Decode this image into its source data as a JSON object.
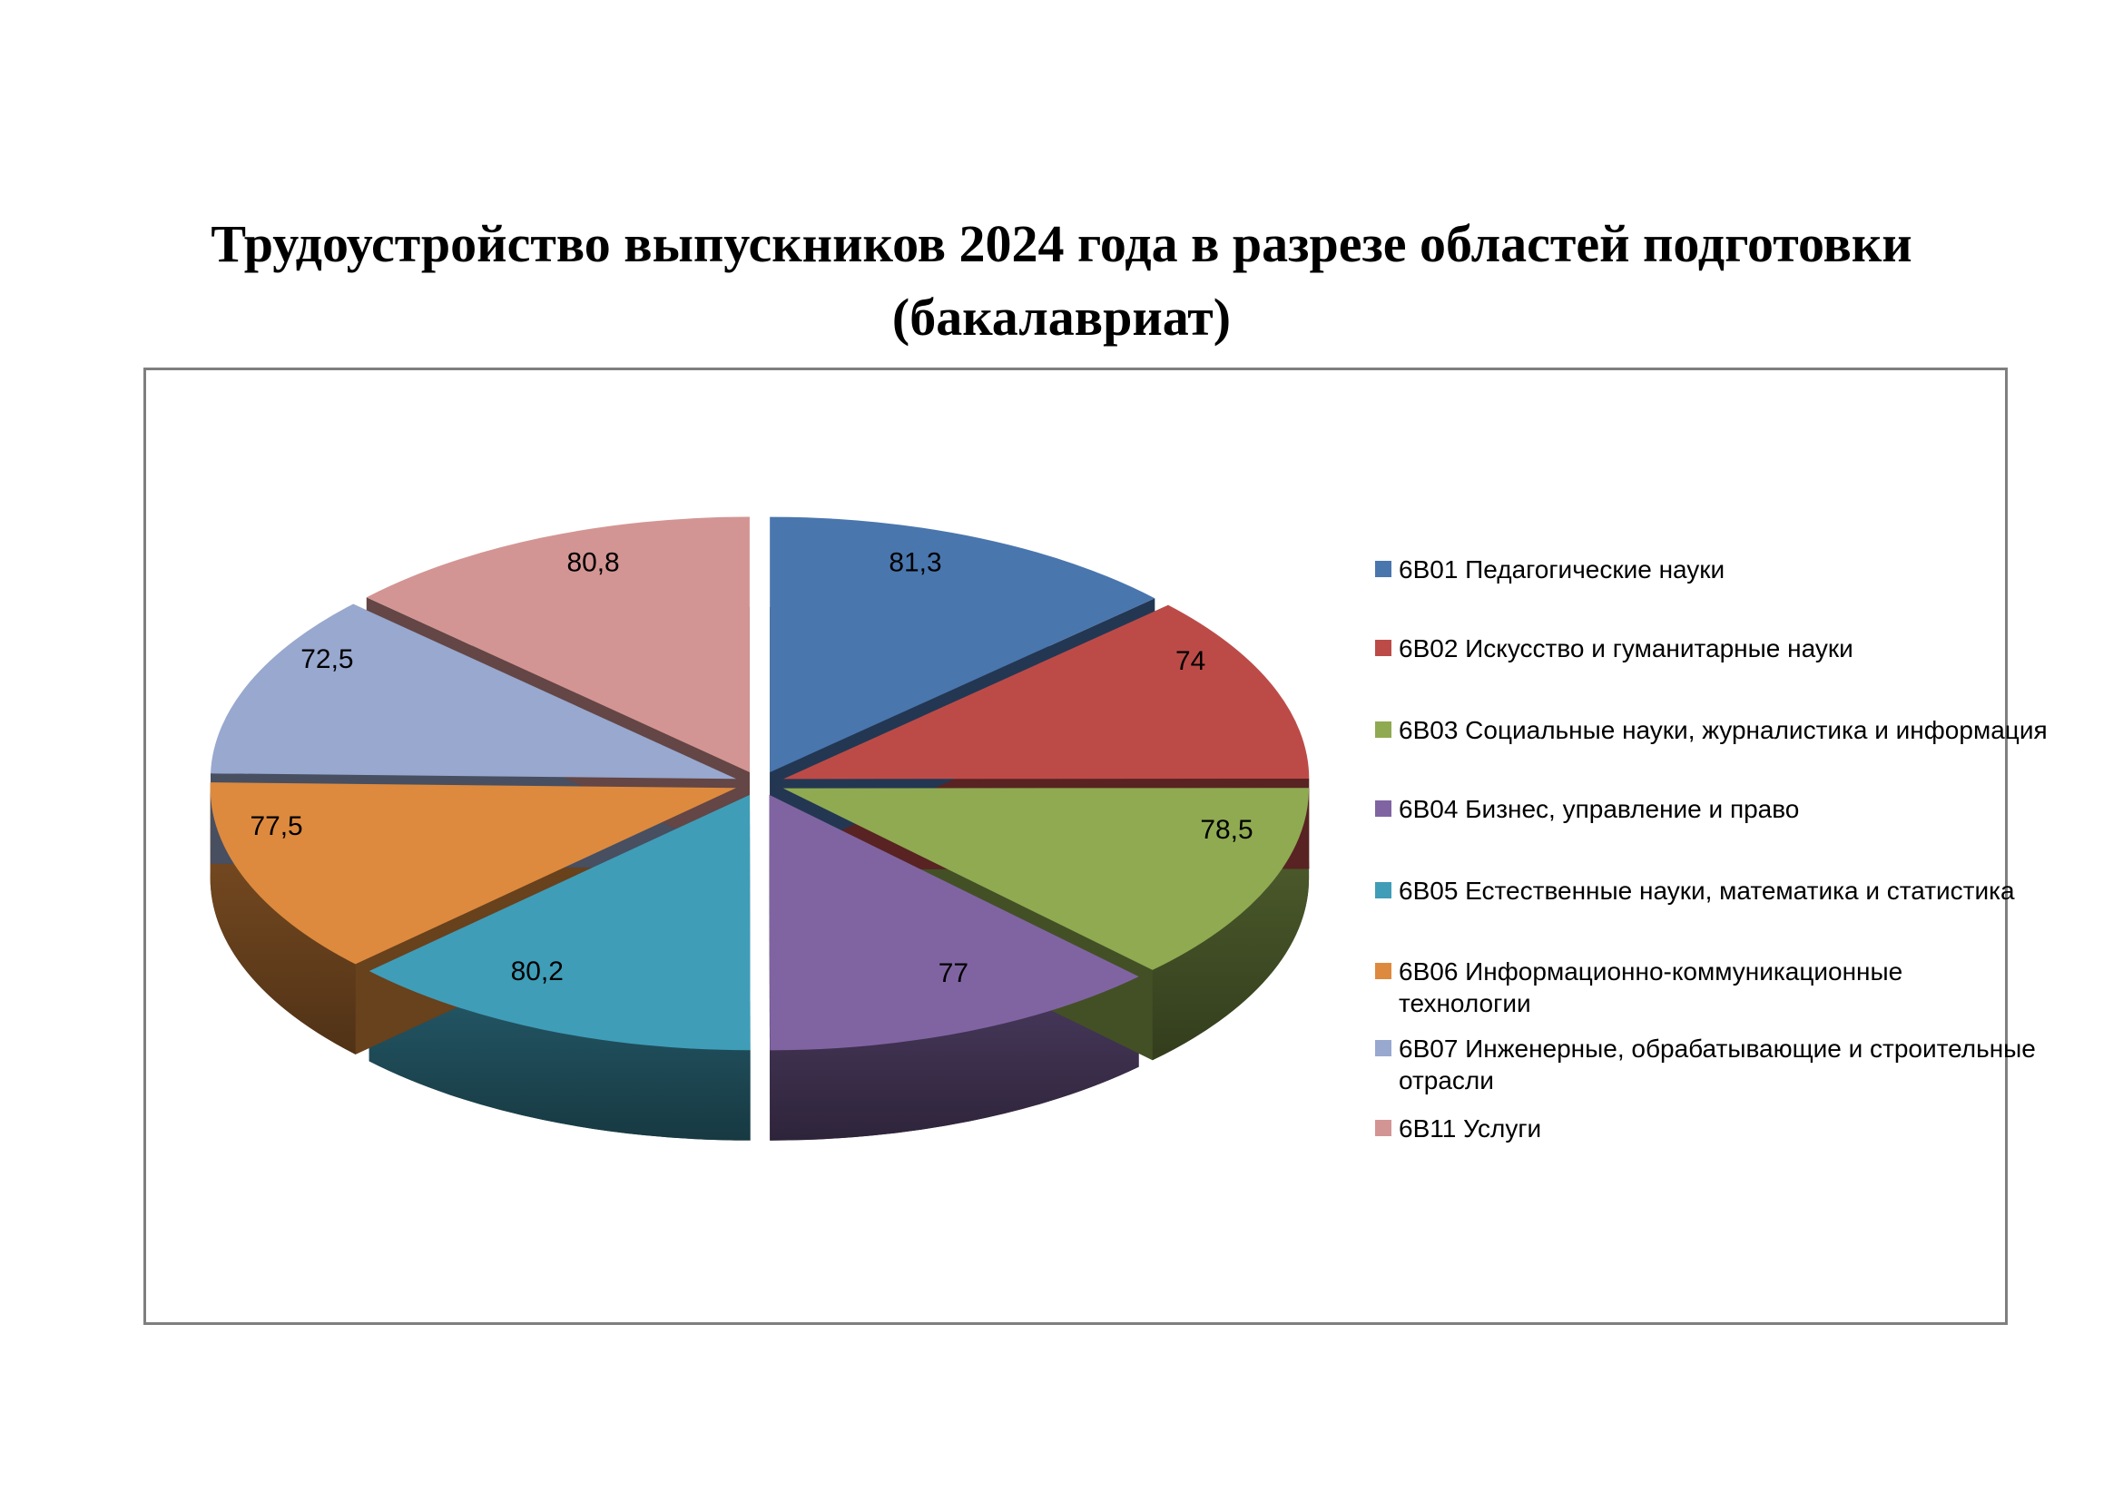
{
  "title": {
    "line1": "Трудоустройство выпускников 2024 года в разрезе областей подготовки",
    "line2": "(бакалавриат)"
  },
  "chart_data": {
    "type": "pie",
    "style": "3d-exploded",
    "title": "Трудоустройство выпускников 2024 года в разрезе областей подготовки (бакалавриат)",
    "legend_position": "right",
    "start_angle_deg": 0,
    "direction": "clockwise",
    "categories": [
      "6В01 Педагогические науки",
      "6В02 Искусство и гуманитарные науки",
      "6В03 Социальные науки, журналистика и информация",
      "6В04 Бизнес, управление и право",
      "6В05 Естественные науки, математика и статистика",
      "6В06 Информационно-коммуникационные технологии",
      "6В07 Инженерные, обрабатывающие и строительные отрасли",
      "6В11 Услуги"
    ],
    "values": [
      81.3,
      74,
      78.5,
      77,
      80.2,
      77.5,
      72.5,
      80.8
    ],
    "value_labels": [
      "81,3",
      "74",
      "78,5",
      "77",
      "80,2",
      "77,5",
      "72,5",
      "80,8"
    ],
    "colors": [
      "#4A76AE",
      "#BC4B48",
      "#8FAA51",
      "#8064A2",
      "#3F9DB8",
      "#DD8A3E",
      "#98A8CF",
      "#D39593"
    ]
  },
  "legend": {
    "items": [
      {
        "label": "6В01 Педагогические науки",
        "lines": [
          "6В01 Педагогические науки"
        ],
        "color": "#4A76AE"
      },
      {
        "label": "6В02 Искусство и гуманитарные науки",
        "lines": [
          "6В02 Искусство и гуманитарные науки"
        ],
        "color": "#BC4B48"
      },
      {
        "label": "6В03 Социальные науки, журналистика и информация",
        "lines": [
          "6В03 Социальные науки, журналистика и информация"
        ],
        "color": "#8FAA51"
      },
      {
        "label": "6В04 Бизнес, управление и право",
        "lines": [
          "6В04 Бизнес, управление и право"
        ],
        "color": "#8064A2"
      },
      {
        "label": "6В05 Естественные науки, математика и статистика",
        "lines": [
          "6В05 Естественные науки, математика и статистика"
        ],
        "color": "#3F9DB8"
      },
      {
        "label": "6В06 Информационно-коммуникационные технологии",
        "lines": [
          "6В06 Информационно-коммуникационные",
          "технологии"
        ],
        "color": "#DD8A3E"
      },
      {
        "label": "6В07 Инженерные, обрабатывающие и строительные отрасли",
        "lines": [
          "6В07 Инженерные, обрабатывающие и строительные",
          "отрасли"
        ],
        "color": "#98A8CF"
      },
      {
        "label": "6В11 Услуги",
        "lines": [
          "6В11 Услуги"
        ],
        "color": "#D39593"
      }
    ]
  },
  "border_color": "#7F7F7F",
  "background_color": "#FFFFFF"
}
